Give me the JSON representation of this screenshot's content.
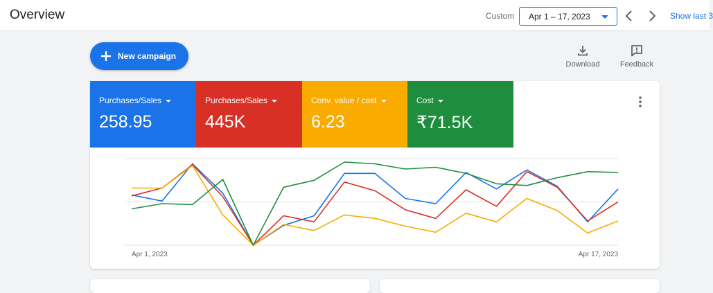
{
  "header": {
    "title": "Overview",
    "custom_label": "Custom",
    "date_range": "Apr 1 – 17, 2023",
    "show_last": "Show last 3"
  },
  "toolbar": {
    "new_campaign": "New campaign",
    "download": "Download",
    "feedback": "Feedback"
  },
  "metrics": [
    {
      "label": "Purchases/Sales",
      "value": "258.95",
      "color": "#1a73e8"
    },
    {
      "label": "Purchases/Sales",
      "value": "445K",
      "color": "#d93025"
    },
    {
      "label": "Conv. value / cost",
      "value": "6.23",
      "color": "#f9ab00"
    },
    {
      "label": "Cost",
      "value": "₹71.5K",
      "color": "#1e8e3e"
    }
  ],
  "chart_data": {
    "type": "line",
    "x": [
      "Apr 1, 2023",
      "Apr 2, 2023",
      "Apr 3, 2023",
      "Apr 4, 2023",
      "Apr 5, 2023",
      "Apr 6, 2023",
      "Apr 7, 2023",
      "Apr 8, 2023",
      "Apr 9, 2023",
      "Apr 10, 2023",
      "Apr 11, 2023",
      "Apr 12, 2023",
      "Apr 13, 2023",
      "Apr 14, 2023",
      "Apr 15, 2023",
      "Apr 16, 2023",
      "Apr 17, 2023"
    ],
    "x_tick_labels": [
      "Apr 1, 2023",
      "Apr 17, 2023"
    ],
    "ylim": [
      0,
      100
    ],
    "grid": true,
    "series": [
      {
        "color": "#1a73e8",
        "values": [
          58,
          51,
          94,
          60,
          0,
          23,
          34,
          83,
          83,
          54,
          48,
          84,
          65,
          87,
          68,
          27,
          65
        ]
      },
      {
        "color": "#d93025",
        "values": [
          57,
          66,
          93,
          56,
          0,
          34,
          27,
          73,
          63,
          41,
          31,
          64,
          45,
          85,
          67,
          28,
          50
        ]
      },
      {
        "color": "#f9ab00",
        "values": [
          66,
          66,
          92,
          35,
          0,
          24,
          17,
          35,
          31,
          22,
          15,
          37,
          27,
          54,
          40,
          14,
          28
        ]
      },
      {
        "color": "#1e8e3e",
        "values": [
          42,
          48,
          47,
          76,
          0,
          67,
          75,
          96,
          94,
          88,
          90,
          83,
          71,
          69,
          78,
          85,
          84
        ]
      }
    ]
  }
}
